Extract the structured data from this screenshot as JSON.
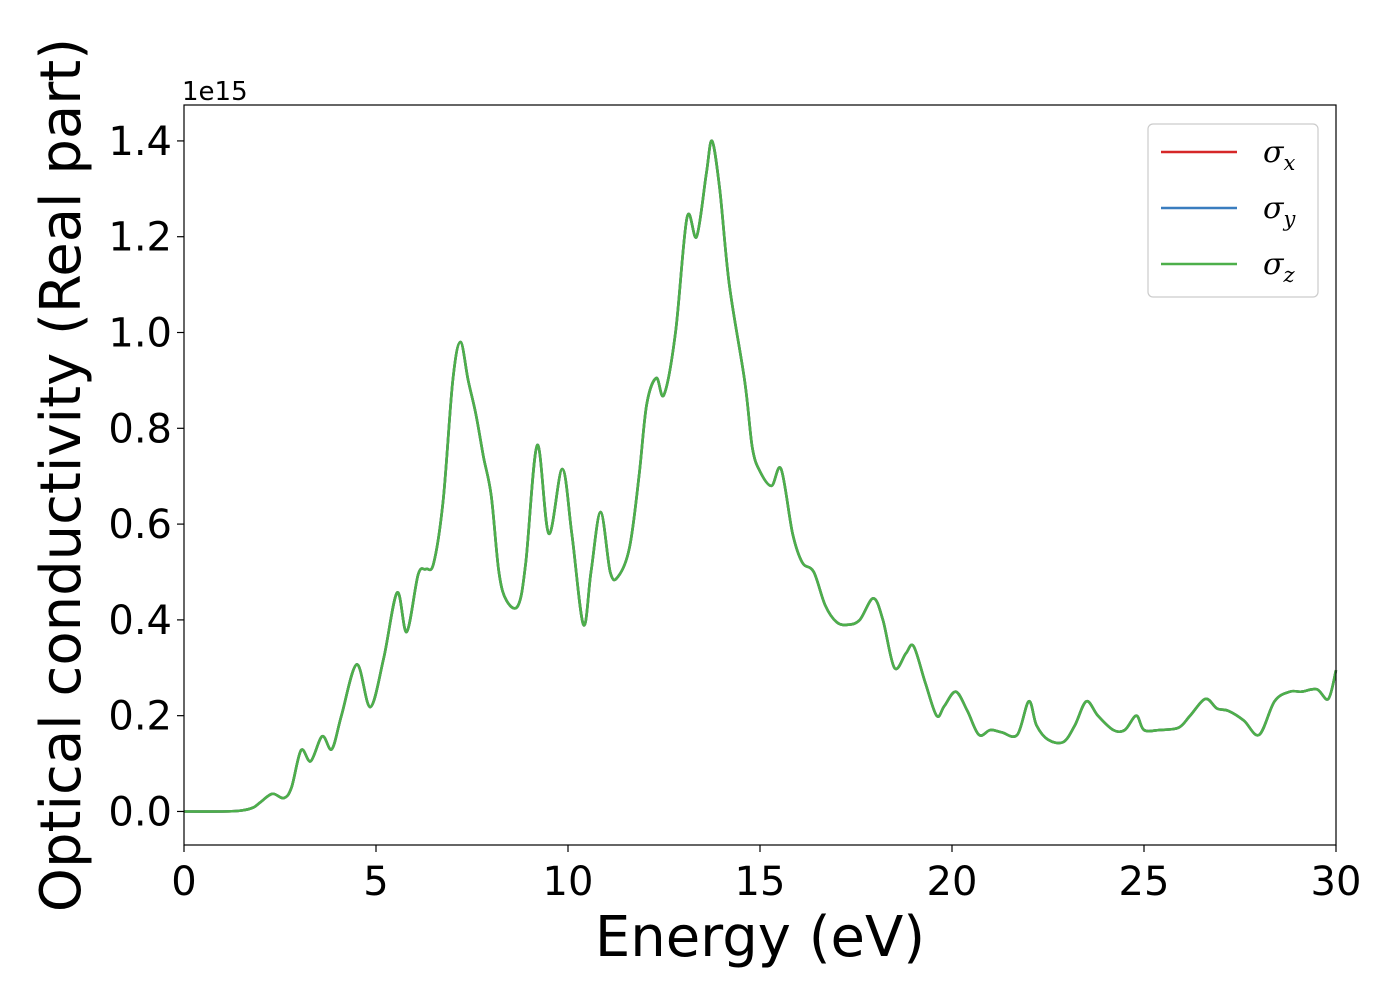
{
  "chart_data": {
    "type": "line",
    "xlabel": "Energy (eV)",
    "ylabel": "Optical conductivity (Real part)",
    "y_offset_label": "1e15",
    "y_multiplier": 1000000000000000.0,
    "xlim": [
      0,
      30
    ],
    "ylim": [
      -0.07,
      1.475
    ],
    "x_ticks": [
      0,
      5,
      10,
      15,
      20,
      25,
      30
    ],
    "x_tick_labels": [
      "0",
      "5",
      "10",
      "15",
      "20",
      "25",
      "30"
    ],
    "y_ticks": [
      0.0,
      0.2,
      0.4,
      0.6,
      0.8,
      1.0,
      1.2,
      1.4
    ],
    "y_tick_labels": [
      "0.0",
      "0.2",
      "0.4",
      "0.6",
      "0.8",
      "1.0",
      "1.2",
      "1.4"
    ],
    "grid": false,
    "legend_position": "top-right",
    "series": [
      {
        "name": "σ",
        "subscript": "x",
        "color": "#d62728"
      },
      {
        "name": "σ",
        "subscript": "y",
        "color": "#3a7dbf"
      },
      {
        "name": "σ",
        "subscript": "z",
        "color": "#4daf4a"
      }
    ],
    "x": [
      0,
      1.0,
      1.5,
      1.8,
      2.0,
      2.3,
      2.6,
      2.8,
      3.05,
      3.3,
      3.6,
      3.85,
      4.1,
      4.5,
      4.85,
      5.2,
      5.55,
      5.8,
      6.1,
      6.3,
      6.5,
      6.75,
      7.0,
      7.2,
      7.4,
      7.6,
      7.8,
      8.0,
      8.2,
      8.4,
      8.7,
      8.9,
      9.2,
      9.5,
      9.85,
      10.1,
      10.4,
      10.6,
      10.85,
      11.1,
      11.3,
      11.6,
      11.85,
      12.05,
      12.3,
      12.5,
      12.8,
      13.1,
      13.35,
      13.6,
      13.75,
      13.95,
      14.2,
      14.6,
      14.8,
      15.0,
      15.3,
      15.55,
      15.85,
      16.1,
      16.4,
      16.7,
      17.0,
      17.3,
      17.6,
      17.95,
      18.2,
      18.5,
      18.8,
      19.0,
      19.3,
      19.6,
      19.8,
      20.1,
      20.4,
      20.7,
      21.0,
      21.3,
      21.7,
      22.0,
      22.2,
      22.5,
      22.9,
      23.2,
      23.5,
      23.8,
      24.2,
      24.5,
      24.8,
      25.0,
      25.4,
      25.9,
      26.2,
      26.6,
      26.9,
      27.2,
      27.6,
      28.0,
      28.4,
      28.8,
      29.1,
      29.5,
      29.8,
      30.0
    ],
    "values": [
      0.0,
      0.0,
      0.002,
      0.008,
      0.02,
      0.037,
      0.028,
      0.05,
      0.128,
      0.105,
      0.157,
      0.13,
      0.2,
      0.307,
      0.218,
      0.32,
      0.457,
      0.375,
      0.495,
      0.506,
      0.518,
      0.65,
      0.9,
      0.98,
      0.9,
      0.83,
      0.74,
      0.66,
      0.5,
      0.44,
      0.43,
      0.52,
      0.765,
      0.58,
      0.715,
      0.58,
      0.39,
      0.5,
      0.625,
      0.5,
      0.49,
      0.55,
      0.7,
      0.85,
      0.905,
      0.87,
      1.0,
      1.24,
      1.2,
      1.33,
      1.4,
      1.3,
      1.1,
      0.9,
      0.76,
      0.71,
      0.68,
      0.715,
      0.58,
      0.52,
      0.5,
      0.43,
      0.395,
      0.39,
      0.4,
      0.445,
      0.4,
      0.3,
      0.33,
      0.345,
      0.27,
      0.2,
      0.22,
      0.25,
      0.21,
      0.16,
      0.17,
      0.165,
      0.16,
      0.23,
      0.18,
      0.15,
      0.145,
      0.18,
      0.23,
      0.2,
      0.17,
      0.17,
      0.2,
      0.17,
      0.17,
      0.175,
      0.2,
      0.235,
      0.215,
      0.21,
      0.19,
      0.16,
      0.23,
      0.25,
      0.25,
      0.255,
      0.235,
      0.295
    ]
  }
}
